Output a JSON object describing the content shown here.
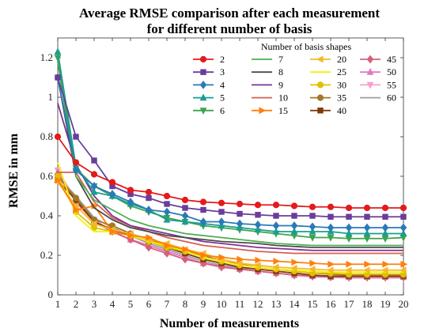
{
  "chart_data": {
    "type": "line",
    "title_line1": "Average RMSE comparison after each measurement",
    "title_line2": "for different number of basis",
    "xlabel": "Number of measurements",
    "ylabel": "RMSE in mm",
    "xlim": [
      1,
      20
    ],
    "ylim": [
      0,
      1.3
    ],
    "xticks": [
      1,
      2,
      3,
      4,
      5,
      6,
      7,
      8,
      9,
      10,
      11,
      12,
      13,
      14,
      15,
      16,
      17,
      18,
      19,
      20
    ],
    "yticks": [
      0,
      0.2,
      0.4,
      0.6,
      0.8,
      1,
      1.2
    ],
    "ytick_labels": [
      "0",
      "0.2",
      "0.4",
      "0.6",
      "0.8",
      "1",
      "1.2"
    ],
    "grid": false,
    "legend_title": "Number of basis shapes",
    "legend_position": "top-right",
    "x": [
      1,
      2,
      3,
      4,
      5,
      6,
      7,
      8,
      9,
      10,
      11,
      12,
      13,
      14,
      15,
      16,
      17,
      18,
      19,
      20
    ],
    "series": [
      {
        "name": "2",
        "color": "#e41a1c",
        "marker": "circle",
        "values": [
          0.8,
          0.67,
          0.61,
          0.57,
          0.53,
          0.52,
          0.5,
          0.48,
          0.47,
          0.465,
          0.46,
          0.455,
          0.455,
          0.45,
          0.445,
          0.445,
          0.44,
          0.44,
          0.44,
          0.44
        ]
      },
      {
        "name": "3",
        "color": "#6a3d9a",
        "marker": "square",
        "values": [
          1.1,
          0.8,
          0.68,
          0.55,
          0.51,
          0.49,
          0.46,
          0.44,
          0.43,
          0.42,
          0.41,
          0.405,
          0.4,
          0.4,
          0.4,
          0.395,
          0.395,
          0.395,
          0.395,
          0.395
        ]
      },
      {
        "name": "4",
        "color": "#2a7ab9",
        "marker": "diamond",
        "values": [
          1.1,
          0.63,
          0.55,
          0.51,
          0.47,
          0.43,
          0.42,
          0.4,
          0.37,
          0.37,
          0.36,
          0.355,
          0.35,
          0.35,
          0.345,
          0.34,
          0.34,
          0.34,
          0.34,
          0.34
        ]
      },
      {
        "name": "5",
        "color": "#1a9e8f",
        "marker": "triangle-up",
        "values": [
          1.23,
          0.65,
          0.52,
          0.5,
          0.46,
          0.43,
          0.38,
          0.37,
          0.36,
          0.35,
          0.34,
          0.33,
          0.32,
          0.32,
          0.32,
          0.32,
          0.31,
          0.31,
          0.31,
          0.31
        ]
      },
      {
        "name": "6",
        "color": "#3fa34d",
        "marker": "triangle-down",
        "values": [
          1.2,
          0.64,
          0.55,
          0.5,
          0.45,
          0.42,
          0.39,
          0.37,
          0.35,
          0.34,
          0.33,
          0.32,
          0.31,
          0.3,
          0.29,
          0.29,
          0.285,
          0.285,
          0.285,
          0.29
        ]
      },
      {
        "name": "7",
        "color": "#4caf50",
        "marker": "none",
        "values": [
          1.18,
          0.6,
          0.48,
          0.43,
          0.38,
          0.35,
          0.33,
          0.31,
          0.3,
          0.29,
          0.28,
          0.27,
          0.26,
          0.255,
          0.25,
          0.25,
          0.25,
          0.25,
          0.25,
          0.25
        ]
      },
      {
        "name": "8",
        "color": "#4b4b4b",
        "marker": "none",
        "values": [
          1.1,
          0.6,
          0.44,
          0.38,
          0.34,
          0.32,
          0.3,
          0.29,
          0.28,
          0.27,
          0.265,
          0.26,
          0.25,
          0.245,
          0.24,
          0.24,
          0.24,
          0.24,
          0.24,
          0.24
        ]
      },
      {
        "name": "9",
        "color": "#7b3294",
        "marker": "none",
        "values": [
          0.97,
          0.66,
          0.5,
          0.4,
          0.35,
          0.33,
          0.31,
          0.29,
          0.27,
          0.26,
          0.25,
          0.24,
          0.235,
          0.23,
          0.225,
          0.225,
          0.225,
          0.225,
          0.225,
          0.225
        ]
      },
      {
        "name": "10",
        "color": "#d6604d",
        "marker": "none",
        "values": [
          0.62,
          0.62,
          0.47,
          0.39,
          0.35,
          0.32,
          0.29,
          0.27,
          0.25,
          0.24,
          0.23,
          0.22,
          0.215,
          0.21,
          0.21,
          0.21,
          0.21,
          0.21,
          0.21,
          0.21
        ]
      },
      {
        "name": "15",
        "color": "#ff7f0e",
        "marker": "triangle-right",
        "values": [
          0.58,
          0.43,
          0.45,
          0.32,
          0.3,
          0.29,
          0.25,
          0.23,
          0.2,
          0.19,
          0.18,
          0.175,
          0.17,
          0.165,
          0.16,
          0.155,
          0.155,
          0.155,
          0.155,
          0.155
        ]
      },
      {
        "name": "20",
        "color": "#f5b82e",
        "marker": "triangle-left",
        "values": [
          0.57,
          0.45,
          0.36,
          0.33,
          0.31,
          0.28,
          0.26,
          0.23,
          0.21,
          0.18,
          0.16,
          0.15,
          0.14,
          0.135,
          0.13,
          0.125,
          0.125,
          0.125,
          0.125,
          0.125
        ]
      },
      {
        "name": "25",
        "color": "#f7f000",
        "marker": "none",
        "values": [
          0.67,
          0.4,
          0.32,
          0.32,
          0.3,
          0.27,
          0.25,
          0.22,
          0.19,
          0.17,
          0.15,
          0.14,
          0.13,
          0.125,
          0.12,
          0.115,
          0.115,
          0.115,
          0.115,
          0.115
        ]
      },
      {
        "name": "30",
        "color": "#e0c000",
        "marker": "circle",
        "values": [
          0.6,
          0.42,
          0.34,
          0.32,
          0.3,
          0.27,
          0.24,
          0.22,
          0.19,
          0.17,
          0.15,
          0.14,
          0.13,
          0.12,
          0.11,
          0.11,
          0.105,
          0.105,
          0.105,
          0.105
        ]
      },
      {
        "name": "35",
        "color": "#a0792a",
        "marker": "circle",
        "values": [
          0.6,
          0.49,
          0.38,
          0.35,
          0.31,
          0.28,
          0.25,
          0.22,
          0.2,
          0.17,
          0.155,
          0.14,
          0.13,
          0.12,
          0.11,
          0.105,
          0.1,
          0.1,
          0.1,
          0.1
        ]
      },
      {
        "name": "40",
        "color": "#7f3b08",
        "marker": "square",
        "values": [
          0.58,
          0.48,
          0.37,
          0.33,
          0.3,
          0.27,
          0.24,
          0.21,
          0.18,
          0.16,
          0.14,
          0.13,
          0.12,
          0.11,
          0.1,
          0.095,
          0.095,
          0.095,
          0.095,
          0.095
        ]
      },
      {
        "name": "45",
        "color": "#d6607a",
        "marker": "diamond",
        "values": [
          0.61,
          0.47,
          0.37,
          0.32,
          0.28,
          0.24,
          0.21,
          0.18,
          0.16,
          0.14,
          0.13,
          0.12,
          0.11,
          0.1,
          0.095,
          0.09,
          0.09,
          0.09,
          0.09,
          0.09
        ]
      },
      {
        "name": "50",
        "color": "#e377c2",
        "marker": "triangle-up",
        "values": [
          0.62,
          0.47,
          0.37,
          0.32,
          0.28,
          0.25,
          0.22,
          0.19,
          0.16,
          0.145,
          0.13,
          0.12,
          0.11,
          0.1,
          0.095,
          0.09,
          0.09,
          0.09,
          0.09,
          0.09
        ]
      },
      {
        "name": "55",
        "color": "#f4a0d0",
        "marker": "triangle-down",
        "values": [
          0.63,
          0.48,
          0.38,
          0.32,
          0.28,
          0.25,
          0.22,
          0.19,
          0.16,
          0.14,
          0.13,
          0.12,
          0.11,
          0.1,
          0.09,
          0.09,
          0.085,
          0.085,
          0.085,
          0.085
        ]
      },
      {
        "name": "60",
        "color": "#9e9e9e",
        "marker": "none",
        "values": [
          0.6,
          0.5,
          0.39,
          0.34,
          0.3,
          0.26,
          0.23,
          0.2,
          0.17,
          0.15,
          0.135,
          0.12,
          0.11,
          0.1,
          0.095,
          0.09,
          0.09,
          0.09,
          0.09,
          0.09
        ]
      }
    ]
  }
}
